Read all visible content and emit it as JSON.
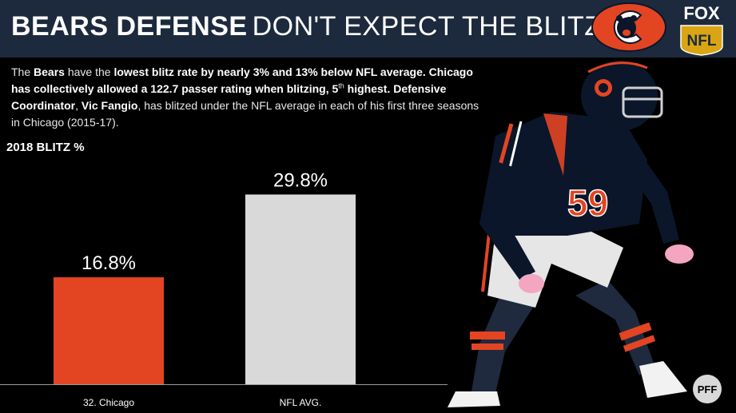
{
  "header": {
    "title_strong": "BEARS DEFENSE",
    "title_light": "DON'T EXPECT THE BLITZ",
    "network_line1": "FOX",
    "network_line2": "NFL"
  },
  "description": {
    "p1": "The ",
    "b1": "Bears",
    "p2": " have the ",
    "b2": "lowest blitz rate by nearly 3% and 13% below NFL average. Chicago has collectively allowed a 122.7 passer rating when blitzing, 5",
    "sup": "th",
    "b3": " highest. Defensive Coordinator",
    "p3": ", ",
    "b4": "Vic Fangio",
    "p4": ", has blitzed under the NFL average in each of his first three seasons in Chicago (2015-17)."
  },
  "chart_title": "2018 BLITZ %",
  "chart_data": {
    "type": "bar",
    "categories": [
      "32. Chicago",
      "NFL AVG."
    ],
    "values": [
      16.8,
      29.8
    ],
    "value_labels": [
      "16.8%",
      "29.8%"
    ],
    "colors": [
      "#e34522",
      "#d9d9d9"
    ],
    "ylim": [
      0,
      34
    ],
    "grid": false,
    "legend": "none"
  },
  "player": {
    "jersey_number": "59"
  },
  "watermark": "PFF",
  "colors": {
    "header_bg": "#1d2a3d",
    "bears_orange": "#e34522",
    "bears_navy": "#0b162a",
    "avg_grey": "#d9d9d9"
  }
}
